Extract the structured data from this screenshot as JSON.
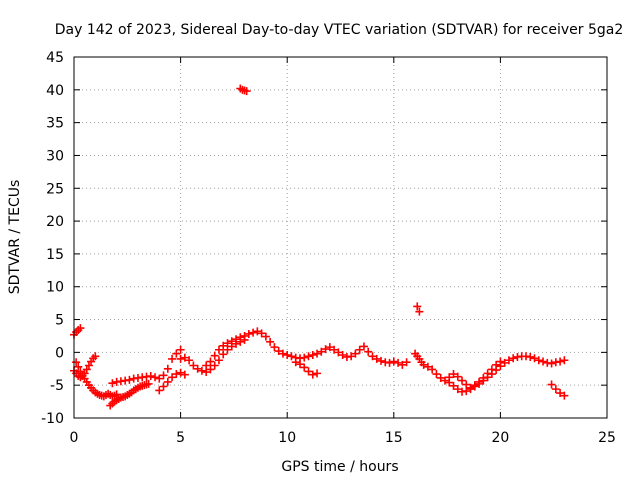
{
  "chart_data": {
    "type": "scatter",
    "title": "Day 142 of 2023, Sidereal Day-to-day VTEC variation (SDTVAR) for receiver 5ga2",
    "xlabel": "GPS time / hours",
    "ylabel": "SDTVAR / TECUs",
    "xlim": [
      0,
      25
    ],
    "ylim": [
      -10,
      45
    ],
    "xticks": [
      0,
      5,
      10,
      15,
      20,
      25
    ],
    "yticks": [
      -10,
      -5,
      0,
      5,
      10,
      15,
      20,
      25,
      30,
      35,
      40,
      45
    ],
    "grid": true,
    "marker": "+",
    "series": [
      {
        "name": "SDTVAR",
        "color": "#ff0000",
        "x": [
          0.0,
          0.1,
          0.2,
          0.3,
          0.0,
          0.1,
          0.2,
          0.3,
          0.4,
          0.5,
          0.6,
          0.7,
          0.8,
          0.9,
          1.0,
          0.1,
          0.2,
          0.3,
          0.4,
          0.5,
          0.6,
          0.7,
          0.8,
          0.9,
          1.0,
          1.1,
          1.2,
          1.3,
          1.4,
          1.5,
          1.6,
          1.7,
          1.8,
          1.9,
          2.0,
          1.7,
          1.8,
          1.9,
          2.0,
          2.1,
          2.2,
          2.3,
          2.4,
          2.5,
          2.6,
          2.7,
          2.8,
          2.9,
          3.0,
          3.1,
          3.2,
          3.3,
          3.4,
          3.5,
          1.8,
          2.0,
          2.2,
          2.4,
          2.6,
          2.8,
          3.0,
          3.2,
          3.4,
          3.6,
          3.8,
          4.0,
          4.2,
          4.4,
          4.6,
          4.8,
          5.0,
          4.0,
          4.2,
          4.4,
          4.6,
          4.8,
          5.0,
          5.2,
          5.0,
          5.2,
          5.4,
          5.6,
          5.8,
          6.0,
          6.2,
          6.4,
          6.6,
          6.8,
          7.0,
          7.2,
          7.4,
          7.6,
          7.8,
          8.0,
          6.2,
          6.4,
          6.6,
          6.8,
          7.0,
          7.2,
          7.4,
          7.6,
          7.8,
          8.0,
          8.2,
          8.4,
          8.6,
          8.8,
          9.0,
          9.2,
          9.4,
          9.6,
          9.8,
          10.0,
          7.8,
          7.9,
          8.0,
          8.1,
          10.2,
          10.4,
          10.6,
          10.8,
          11.0,
          11.2,
          11.4,
          11.6,
          11.8,
          12.0,
          12.2,
          12.4,
          12.6,
          12.8,
          13.0,
          13.2,
          13.4,
          13.6,
          13.8,
          14.0,
          14.2,
          14.4,
          14.6,
          14.8,
          15.0,
          15.2,
          15.4,
          15.6,
          10.4,
          10.6,
          10.8,
          11.0,
          11.2,
          11.4,
          16.0,
          16.1,
          16.2,
          16.3,
          16.4,
          16.6,
          16.8,
          17.0,
          17.2,
          17.4,
          17.6,
          17.8,
          18.0,
          18.2,
          18.4,
          18.6,
          18.8,
          19.0,
          19.2,
          19.4,
          19.6,
          19.8,
          20.0,
          17.6,
          17.8,
          18.0,
          18.2,
          18.4,
          18.6,
          18.8,
          19.0,
          19.2,
          19.4,
          19.6,
          19.8,
          20.0,
          20.2,
          20.4,
          20.6,
          20.8,
          21.0,
          21.2,
          21.4,
          21.6,
          21.8,
          22.0,
          22.2,
          22.4,
          22.6,
          22.8,
          23.0,
          22.4,
          22.6,
          22.8,
          23.0,
          16.1,
          16.2
        ],
        "y": [
          2.7,
          3.1,
          3.4,
          3.7,
          -2.8,
          -3.2,
          -3.6,
          -3.8,
          -3.6,
          -3.2,
          -2.6,
          -2.0,
          -1.4,
          -0.9,
          -0.6,
          -1.5,
          -2.2,
          -2.9,
          -3.5,
          -4.0,
          -4.5,
          -5.0,
          -5.4,
          -5.8,
          -6.1,
          -6.3,
          -6.5,
          -6.6,
          -6.7,
          -6.5,
          -6.3,
          -6.5,
          -6.7,
          -6.6,
          -6.4,
          -8.1,
          -7.8,
          -7.5,
          -7.3,
          -7.1,
          -6.9,
          -6.8,
          -6.7,
          -6.5,
          -6.3,
          -6.1,
          -5.8,
          -5.6,
          -5.4,
          -5.2,
          -5.1,
          -5.0,
          -4.9,
          -4.8,
          -4.7,
          -4.5,
          -4.4,
          -4.3,
          -4.2,
          -4.0,
          -3.9,
          -3.8,
          -3.7,
          -3.6,
          -3.8,
          -4.0,
          -3.5,
          -2.5,
          -1.0,
          -0.2,
          0.4,
          -5.8,
          -5.2,
          -4.5,
          -3.8,
          -3.3,
          -3.1,
          -3.4,
          -1.0,
          -0.8,
          -1.2,
          -2.0,
          -2.5,
          -2.8,
          -3.0,
          -2.6,
          -2.0,
          -1.2,
          -0.3,
          0.4,
          0.9,
          1.3,
          1.6,
          1.9,
          -2.0,
          -1.4,
          -0.5,
          0.4,
          1.0,
          1.4,
          1.7,
          2.0,
          2.3,
          2.5,
          2.8,
          3.0,
          3.2,
          2.9,
          2.4,
          1.6,
          0.8,
          0.2,
          -0.2,
          -0.4,
          40.2,
          40.0,
          39.9,
          39.8,
          -0.6,
          -0.8,
          -0.9,
          -0.8,
          -0.6,
          -0.4,
          -0.2,
          0.1,
          0.5,
          0.8,
          0.4,
          0.0,
          -0.4,
          -0.7,
          -0.6,
          -0.2,
          0.4,
          0.9,
          0.1,
          -0.6,
          -1.0,
          -1.3,
          -1.5,
          -1.6,
          -1.4,
          -1.6,
          -1.9,
          -1.5,
          -1.5,
          -1.8,
          -2.3,
          -2.9,
          -3.4,
          -3.2,
          -0.2,
          -0.6,
          -1.0,
          -1.5,
          -1.9,
          -2.2,
          -2.6,
          -3.3,
          -3.9,
          -4.3,
          -3.8,
          -3.3,
          -3.7,
          -4.3,
          -4.9,
          -5.4,
          -5.0,
          -4.5,
          -3.9,
          -3.2,
          -2.6,
          -1.9,
          -1.4,
          -4.6,
          -5.1,
          -5.6,
          -6.0,
          -5.9,
          -5.6,
          -5.2,
          -4.8,
          -4.3,
          -3.8,
          -3.3,
          -2.7,
          -2.1,
          -1.6,
          -1.2,
          -0.9,
          -0.7,
          -0.6,
          -0.6,
          -0.7,
          -0.9,
          -1.2,
          -1.4,
          -1.6,
          -1.7,
          -1.5,
          -1.4,
          -1.2,
          -4.9,
          -5.6,
          -6.2,
          -6.6,
          7.0,
          6.2
        ]
      }
    ]
  }
}
